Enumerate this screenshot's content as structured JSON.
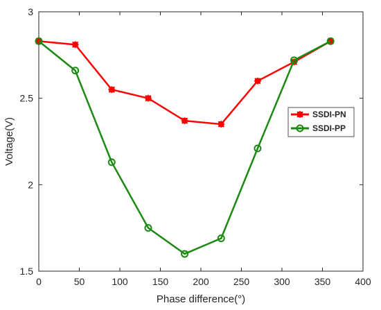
{
  "chart_data": {
    "type": "line",
    "xlabel": "Phase difference(°)",
    "ylabel": "Voltage(V)",
    "xlim": [
      0,
      400
    ],
    "ylim": [
      1.5,
      3
    ],
    "xticks": [
      0,
      50,
      100,
      150,
      200,
      250,
      300,
      350,
      400
    ],
    "yticks": [
      1.5,
      2,
      2.5,
      3
    ],
    "xtick_labels": [
      "0",
      "50",
      "100",
      "150",
      "200",
      "250",
      "300",
      "350",
      "400"
    ],
    "ytick_labels": [
      "1.5",
      "2",
      "2.5",
      "3"
    ],
    "grid": false,
    "legend_position": "right",
    "series": [
      {
        "name": "SSDI-PN",
        "color": "#ff0000",
        "marker": "square-star",
        "x": [
          0,
          45,
          90,
          135,
          180,
          225,
          270,
          315,
          360
        ],
        "y": [
          2.83,
          2.81,
          2.55,
          2.5,
          2.37,
          2.35,
          2.6,
          2.71,
          2.83
        ]
      },
      {
        "name": "SSDI-PP",
        "color": "#1a8a12",
        "marker": "circle",
        "x": [
          0,
          45,
          90,
          135,
          180,
          225,
          270,
          315,
          360
        ],
        "y": [
          2.83,
          2.66,
          2.13,
          1.75,
          1.6,
          1.69,
          2.21,
          2.72,
          2.83
        ]
      }
    ]
  }
}
